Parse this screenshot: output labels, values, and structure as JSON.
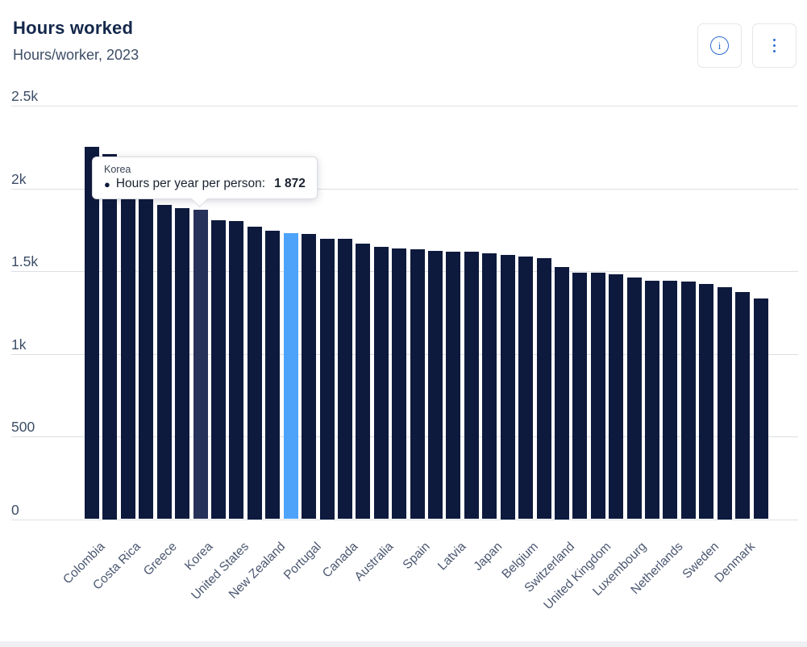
{
  "header": {
    "title": "Hours worked",
    "subtitle": "Hours/worker, 2023",
    "buttons": [
      {
        "name": "info-button",
        "icon": "info-icon",
        "glyph": "i"
      },
      {
        "name": "menu-button",
        "icon": "kebab-menu-icon"
      }
    ]
  },
  "tooltip": {
    "country": "Korea",
    "bullet": "●",
    "metric_label": "Hours per year per person:",
    "value": "1 872"
  },
  "colors": {
    "bar_default": "#0e1a3d",
    "bar_hovered": "#27325a",
    "bar_highlighted": "#4da3fa",
    "gridline": "#dcdfe4",
    "accent_blue": "#2e6ed0",
    "title": "#14284b",
    "axis_text": "#3d4d66"
  },
  "chart_data": {
    "type": "bar",
    "title": "Hours worked",
    "subtitle": "Hours/worker, 2023",
    "xlabel": "",
    "ylabel": "Hours per year per person",
    "ylim": [
      0,
      2500
    ],
    "grid": true,
    "yticks": [
      {
        "value": 2500,
        "label": "2.5k"
      },
      {
        "value": 2000,
        "label": "2k"
      },
      {
        "value": 1500,
        "label": "1.5k"
      },
      {
        "value": 1000,
        "label": "1k"
      },
      {
        "value": 500,
        "label": "500"
      },
      {
        "value": 0,
        "label": "0"
      }
    ],
    "note": "Only every second bar carries a visible country label in the chart; unlabeled bars have label set to empty string. Values estimated from bar heights; Korea value shown in tooltip.",
    "bars": [
      {
        "label": "Colombia",
        "value": 2254,
        "state": "default"
      },
      {
        "label": "",
        "value": 2208,
        "state": "default"
      },
      {
        "label": "Costa Rica",
        "value": 2171,
        "state": "default"
      },
      {
        "label": "",
        "value": 1953,
        "state": "default"
      },
      {
        "label": "Greece",
        "value": 1901,
        "state": "default"
      },
      {
        "label": "",
        "value": 1880,
        "state": "default"
      },
      {
        "label": "Korea",
        "value": 1872,
        "state": "hovered"
      },
      {
        "label": "",
        "value": 1807,
        "state": "default"
      },
      {
        "label": "United States",
        "value": 1804,
        "state": "default"
      },
      {
        "label": "",
        "value": 1769,
        "state": "default"
      },
      {
        "label": "New Zealand",
        "value": 1743,
        "state": "default"
      },
      {
        "label": "",
        "value": 1732,
        "state": "highlighted"
      },
      {
        "label": "Portugal",
        "value": 1727,
        "state": "default"
      },
      {
        "label": "",
        "value": 1696,
        "state": "default"
      },
      {
        "label": "Canada",
        "value": 1694,
        "state": "default"
      },
      {
        "label": "",
        "value": 1667,
        "state": "default"
      },
      {
        "label": "Australia",
        "value": 1646,
        "state": "default"
      },
      {
        "label": "",
        "value": 1636,
        "state": "default"
      },
      {
        "label": "Spain",
        "value": 1631,
        "state": "default"
      },
      {
        "label": "",
        "value": 1623,
        "state": "default"
      },
      {
        "label": "Latvia",
        "value": 1618,
        "state": "default"
      },
      {
        "label": "",
        "value": 1617,
        "state": "default"
      },
      {
        "label": "Japan",
        "value": 1606,
        "state": "default"
      },
      {
        "label": "",
        "value": 1598,
        "state": "default"
      },
      {
        "label": "Belgium",
        "value": 1588,
        "state": "default"
      },
      {
        "label": "",
        "value": 1577,
        "state": "default"
      },
      {
        "label": "Switzerland",
        "value": 1525,
        "state": "default"
      },
      {
        "label": "",
        "value": 1493,
        "state": "default"
      },
      {
        "label": "United Kingdom",
        "value": 1490,
        "state": "default"
      },
      {
        "label": "",
        "value": 1483,
        "state": "default"
      },
      {
        "label": "Luxembourg",
        "value": 1463,
        "state": "default"
      },
      {
        "label": "",
        "value": 1444,
        "state": "default"
      },
      {
        "label": "Netherlands",
        "value": 1441,
        "state": "default"
      },
      {
        "label": "",
        "value": 1438,
        "state": "default"
      },
      {
        "label": "Sweden",
        "value": 1422,
        "state": "default"
      },
      {
        "label": "",
        "value": 1403,
        "state": "default"
      },
      {
        "label": "Denmark",
        "value": 1373,
        "state": "default"
      },
      {
        "label": "",
        "value": 1333,
        "state": "default"
      }
    ]
  }
}
